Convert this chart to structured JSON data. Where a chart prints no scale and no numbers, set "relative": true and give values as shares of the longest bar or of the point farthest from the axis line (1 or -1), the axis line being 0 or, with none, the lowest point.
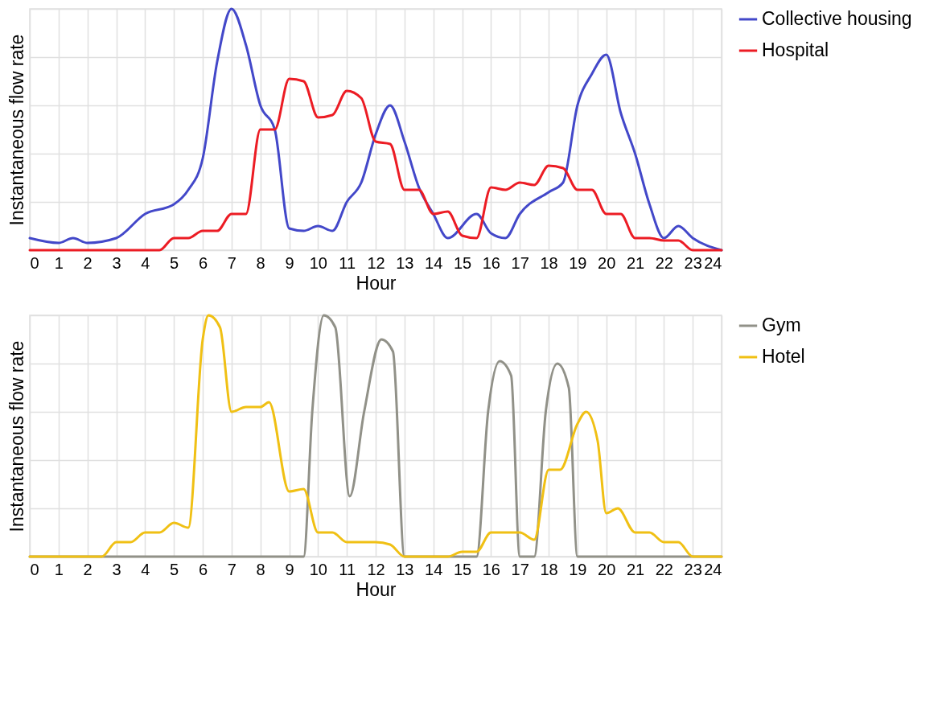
{
  "chart_data": [
    {
      "type": "line",
      "xlabel": "Hour",
      "ylabel": "Instantaneous flow rate",
      "relative": true,
      "xlim": [
        0,
        24
      ],
      "xticks": [
        0,
        1,
        2,
        3,
        4,
        5,
        6,
        7,
        8,
        9,
        10,
        11,
        12,
        13,
        14,
        15,
        16,
        17,
        18,
        19,
        20,
        21,
        22,
        23,
        24
      ],
      "grid": true,
      "legend": "right",
      "series": [
        {
          "name": "Collective housing",
          "color": "#4348c9",
          "x": [
            0,
            1,
            1.5,
            2,
            3,
            4,
            5,
            5.5,
            6,
            6.5,
            7,
            7.5,
            8,
            8.5,
            9,
            9.5,
            10,
            10.5,
            11,
            11.5,
            12,
            12.5,
            13,
            13.5,
            14,
            14.5,
            15.5,
            16,
            16.5,
            17,
            18,
            18.5,
            19,
            19.5,
            20,
            20.5,
            21,
            21.5,
            22,
            22.5,
            23,
            24
          ],
          "values": [
            0.05,
            0.03,
            0.05,
            0.03,
            0.05,
            0.15,
            0.19,
            0.25,
            0.38,
            0.78,
            1,
            0.85,
            0.6,
            0.5,
            0.09,
            0.08,
            0.1,
            0.08,
            0.2,
            0.28,
            0.48,
            0.6,
            0.45,
            0.26,
            0.15,
            0.05,
            0.15,
            0.07,
            0.05,
            0.15,
            0.24,
            0.28,
            0.6,
            0.73,
            0.81,
            0.57,
            0.4,
            0.19,
            0.05,
            0.1,
            0.05,
            0
          ]
        },
        {
          "name": "Hospital",
          "color": "#ec1c24",
          "x": [
            0,
            4.5,
            5,
            5.5,
            6,
            6.5,
            7,
            7.5,
            8,
            8.5,
            9,
            9.5,
            10,
            10.5,
            11,
            11.5,
            12,
            12.5,
            13,
            13.5,
            14,
            14.5,
            15,
            15.5,
            16,
            16.5,
            17,
            17.5,
            18,
            18.5,
            19,
            19.5,
            20,
            20.5,
            21,
            21.5,
            22,
            22.5,
            23,
            24
          ],
          "values": [
            0,
            0,
            0.05,
            0.05,
            0.08,
            0.08,
            0.15,
            0.15,
            0.5,
            0.5,
            0.71,
            0.7,
            0.55,
            0.56,
            0.66,
            0.63,
            0.45,
            0.44,
            0.25,
            0.25,
            0.15,
            0.16,
            0.06,
            0.05,
            0.26,
            0.25,
            0.28,
            0.27,
            0.35,
            0.34,
            0.25,
            0.25,
            0.15,
            0.15,
            0.05,
            0.05,
            0.04,
            0.04,
            0,
            0
          ]
        }
      ]
    },
    {
      "type": "line",
      "xlabel": "Hour",
      "ylabel": "Instantaneous flow rate",
      "relative": true,
      "xlim": [
        0,
        24
      ],
      "xticks": [
        0,
        1,
        2,
        3,
        4,
        5,
        6,
        7,
        8,
        9,
        10,
        11,
        12,
        13,
        14,
        15,
        16,
        17,
        18,
        19,
        20,
        21,
        22,
        23,
        24
      ],
      "grid": true,
      "legend": "right",
      "series": [
        {
          "name": "Gym",
          "color": "#919188",
          "x": [
            0,
            9.5,
            9.8,
            10.2,
            10.6,
            11.1,
            11.6,
            12.2,
            12.6,
            13,
            15.5,
            15.9,
            16.3,
            16.7,
            17,
            17.5,
            17.9,
            18.3,
            18.7,
            19,
            24
          ],
          "values": [
            0,
            0,
            0.6,
            1,
            0.95,
            0.25,
            0.6,
            0.9,
            0.85,
            0,
            0,
            0.6,
            0.81,
            0.75,
            0,
            0,
            0.6,
            0.8,
            0.7,
            0,
            0
          ]
        },
        {
          "name": "Hotel",
          "color": "#f0c014",
          "x": [
            0,
            2.5,
            3,
            3.5,
            4,
            4.5,
            5,
            5.5,
            6,
            6.2,
            6.6,
            7,
            7.5,
            8,
            8.3,
            9,
            9.5,
            10,
            10.5,
            11,
            12,
            12.5,
            13,
            14.5,
            15,
            15.5,
            16,
            17,
            17.5,
            18,
            18.4,
            19,
            19.3,
            19.7,
            20,
            20.4,
            21,
            21.5,
            22,
            22.5,
            23,
            24
          ],
          "values": [
            0,
            0,
            0.06,
            0.06,
            0.1,
            0.1,
            0.14,
            0.12,
            0.9,
            1,
            0.95,
            0.6,
            0.62,
            0.62,
            0.64,
            0.27,
            0.28,
            0.1,
            0.1,
            0.06,
            0.06,
            0.05,
            0,
            0,
            0.02,
            0.02,
            0.1,
            0.1,
            0.07,
            0.36,
            0.36,
            0.55,
            0.6,
            0.48,
            0.18,
            0.2,
            0.1,
            0.1,
            0.06,
            0.06,
            0,
            0
          ]
        }
      ]
    }
  ]
}
